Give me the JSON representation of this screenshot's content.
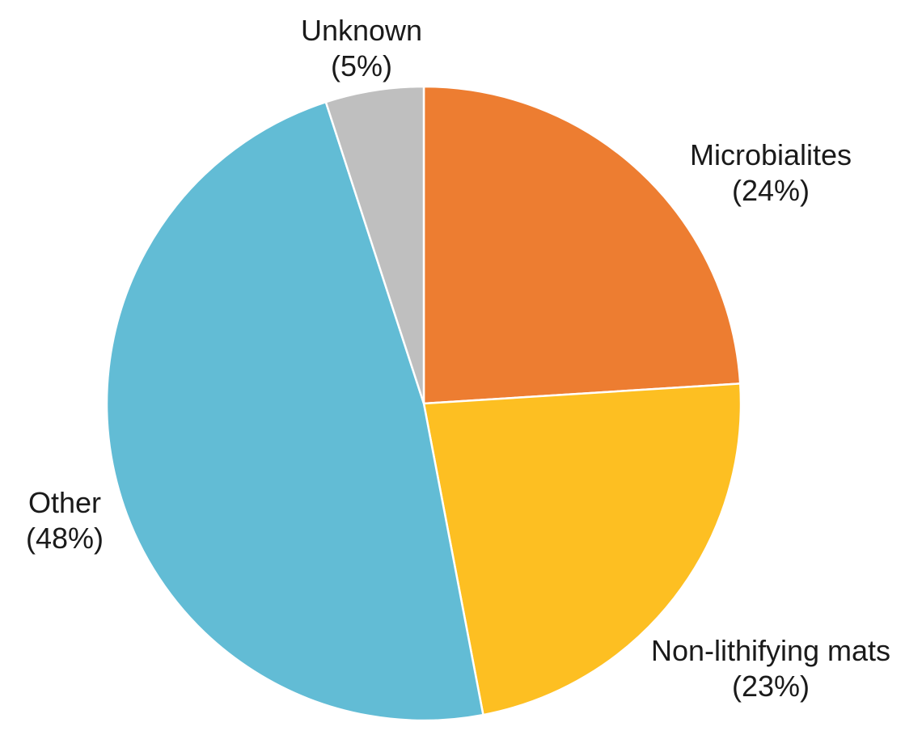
{
  "chart_data": {
    "type": "pie",
    "start": "top, clockwise",
    "slices": [
      {
        "label": "Microbialites",
        "value": 24,
        "value_label": "(24%)",
        "color": "#ED7D31"
      },
      {
        "label": "Non-lithifying mats",
        "value": 23,
        "value_label": "(23%)",
        "color": "#FDBF22"
      },
      {
        "label": "Other",
        "value": 48,
        "value_label": "(48%)",
        "color": "#62BCD5"
      },
      {
        "label": "Unknown",
        "value": 5,
        "value_label": "(5%)",
        "color": "#BFBFBF"
      }
    ]
  }
}
